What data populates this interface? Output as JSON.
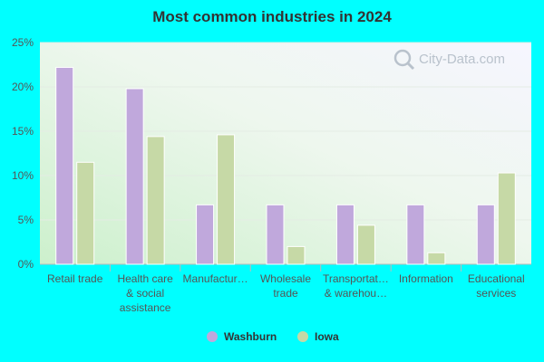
{
  "chart_data": {
    "type": "bar",
    "title": "Most common industries in 2024",
    "xlabel": "",
    "ylabel": "",
    "ylim": [
      0,
      25
    ],
    "yticks": [
      "0%",
      "5%",
      "10%",
      "15%",
      "20%",
      "25%"
    ],
    "categories": [
      [
        "Retail trade"
      ],
      [
        "Health care",
        "& social",
        "assistance"
      ],
      [
        "Manufactur…"
      ],
      [
        "Wholesale",
        "trade"
      ],
      [
        "Transportat…",
        "& warehou…"
      ],
      [
        "Information"
      ],
      [
        "Educational",
        "services"
      ]
    ],
    "series": [
      {
        "name": "Washburn",
        "color": "#c0a8dc",
        "values": [
          22.2,
          19.8,
          6.7,
          6.7,
          6.7,
          6.7,
          6.7
        ]
      },
      {
        "name": "Iowa",
        "color": "#c6d9a6",
        "values": [
          11.5,
          14.4,
          14.6,
          2.0,
          4.4,
          1.3,
          10.3
        ]
      }
    ],
    "grid": true,
    "legend": "bottom-center"
  },
  "watermark": "City-Data.com"
}
